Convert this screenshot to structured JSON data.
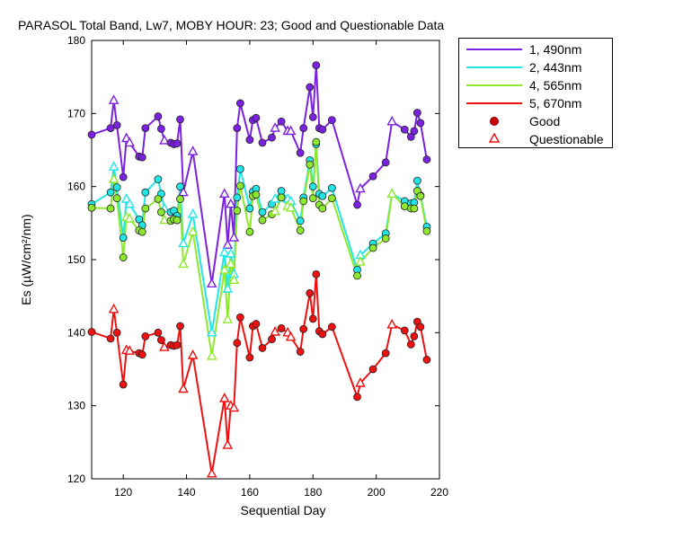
{
  "chart_data": {
    "type": "line",
    "title": "PARASOL Total Band,  Lw7, MOBY HOUR: 23;  Good and Questionable Data",
    "xlabel": "Sequential Day",
    "ylabel": "Es (µW/cm²/nm)",
    "xlim": [
      110,
      220
    ],
    "ylim": [
      120,
      180
    ],
    "xticks": [
      "120",
      "140",
      "160",
      "180",
      "200",
      "220"
    ],
    "yticks": [
      "120",
      "130",
      "140",
      "150",
      "160",
      "170",
      "180"
    ],
    "legend_position": "outside-top-right",
    "series": [
      {
        "name": "1, 490nm",
        "color": "#7b22e0",
        "points": [
          [
            110,
            167.1,
            "g"
          ],
          [
            116,
            168.0,
            "g"
          ],
          [
            117,
            171.8,
            "q"
          ],
          [
            118,
            168.4,
            "g"
          ],
          [
            120,
            161.3,
            "g"
          ],
          [
            121,
            166.6,
            "q"
          ],
          [
            122,
            166.0,
            "q"
          ],
          [
            125,
            164.1,
            "g"
          ],
          [
            126,
            164.0,
            "g"
          ],
          [
            127,
            168.0,
            "g"
          ],
          [
            131,
            169.6,
            "g"
          ],
          [
            132,
            167.9,
            "g"
          ],
          [
            133,
            166.3,
            "q"
          ],
          [
            135,
            166.0,
            "g"
          ],
          [
            136,
            165.8,
            "g"
          ],
          [
            137,
            165.9,
            "g"
          ],
          [
            138,
            169.2,
            "g"
          ],
          [
            139,
            159.2,
            "q"
          ],
          [
            142,
            164.8,
            "q"
          ],
          [
            148,
            146.7,
            "q"
          ],
          [
            152,
            159.0,
            "q"
          ],
          [
            153,
            152.0,
            "q"
          ],
          [
            154,
            157.6,
            "q"
          ],
          [
            155,
            153.0,
            "q"
          ],
          [
            156,
            168.0,
            "g"
          ],
          [
            157,
            171.4,
            "g"
          ],
          [
            160,
            166.4,
            "g"
          ],
          [
            161,
            169.1,
            "g"
          ],
          [
            162,
            169.4,
            "g"
          ],
          [
            164,
            166.0,
            "g"
          ],
          [
            167,
            166.7,
            "g"
          ],
          [
            168,
            168.0,
            "q"
          ],
          [
            170,
            168.9,
            "g"
          ],
          [
            172,
            167.6,
            "q"
          ],
          [
            173,
            167.6,
            "q"
          ],
          [
            176,
            164.6,
            "g"
          ],
          [
            177,
            168.0,
            "g"
          ],
          [
            179,
            173.6,
            "g"
          ],
          [
            180,
            169.5,
            "g"
          ],
          [
            181,
            176.6,
            "g"
          ],
          [
            182,
            168.0,
            "g"
          ],
          [
            183,
            167.8,
            "g"
          ],
          [
            186,
            169.1,
            "g"
          ],
          [
            194,
            157.5,
            "g"
          ],
          [
            195,
            159.7,
            "q"
          ],
          [
            199,
            161.4,
            "g"
          ],
          [
            203,
            163.3,
            "g"
          ],
          [
            205,
            168.9,
            "q"
          ],
          [
            209,
            167.8,
            "g"
          ],
          [
            211,
            166.8,
            "g"
          ],
          [
            212,
            167.6,
            "g"
          ],
          [
            213,
            170.1,
            "g"
          ],
          [
            214,
            168.7,
            "g"
          ],
          [
            216,
            163.7,
            "g"
          ]
        ]
      },
      {
        "name": "2, 443nm",
        "color": "#22e5e5",
        "points": [
          [
            110,
            157.6,
            "g"
          ],
          [
            116,
            159.2,
            "g"
          ],
          [
            117,
            162.7,
            "q"
          ],
          [
            118,
            159.9,
            "g"
          ],
          [
            120,
            153.0,
            "g"
          ],
          [
            121,
            158.3,
            "q"
          ],
          [
            122,
            157.6,
            "q"
          ],
          [
            125,
            155.5,
            "g"
          ],
          [
            126,
            154.7,
            "g"
          ],
          [
            127,
            159.2,
            "g"
          ],
          [
            131,
            161.0,
            "g"
          ],
          [
            132,
            159.0,
            "g"
          ],
          [
            133,
            157.0,
            "q"
          ],
          [
            135,
            156.5,
            "g"
          ],
          [
            136,
            156.7,
            "g"
          ],
          [
            137,
            156.0,
            "g"
          ],
          [
            138,
            160.0,
            "g"
          ],
          [
            139,
            152.2,
            "q"
          ],
          [
            142,
            156.2,
            "q"
          ],
          [
            148,
            140.0,
            "q"
          ],
          [
            152,
            151.0,
            "q"
          ],
          [
            153,
            146.0,
            "q"
          ],
          [
            154,
            150.8,
            "q"
          ],
          [
            155,
            148.0,
            "q"
          ],
          [
            156,
            158.5,
            "g"
          ],
          [
            157,
            162.4,
            "g"
          ],
          [
            160,
            157.0,
            "g"
          ],
          [
            161,
            159.3,
            "g"
          ],
          [
            162,
            159.7,
            "g"
          ],
          [
            164,
            156.5,
            "g"
          ],
          [
            167,
            157.6,
            "g"
          ],
          [
            168,
            158.3,
            "q"
          ],
          [
            170,
            159.4,
            "g"
          ],
          [
            172,
            158.3,
            "q"
          ],
          [
            173,
            158.0,
            "q"
          ],
          [
            176,
            155.3,
            "g"
          ],
          [
            177,
            158.5,
            "g"
          ],
          [
            179,
            163.6,
            "g"
          ],
          [
            180,
            160.0,
            "g"
          ],
          [
            181,
            165.8,
            "g"
          ],
          [
            182,
            159.0,
            "g"
          ],
          [
            183,
            158.7,
            "g"
          ],
          [
            186,
            159.8,
            "g"
          ],
          [
            194,
            148.6,
            "g"
          ],
          [
            195,
            150.6,
            "q"
          ],
          [
            199,
            152.2,
            "g"
          ],
          [
            203,
            153.6,
            "g"
          ],
          [
            205,
            159.0,
            "q"
          ],
          [
            209,
            158.0,
            "g"
          ],
          [
            211,
            157.7,
            "g"
          ],
          [
            212,
            157.8,
            "g"
          ],
          [
            213,
            160.8,
            "g"
          ],
          [
            214,
            158.8,
            "g"
          ],
          [
            216,
            154.5,
            "g"
          ]
        ]
      },
      {
        "name": "4, 565nm",
        "color": "#8fe830",
        "points": [
          [
            110,
            157.1,
            "g"
          ],
          [
            116,
            157.0,
            "g"
          ],
          [
            117,
            161.0,
            "q"
          ],
          [
            118,
            158.4,
            "g"
          ],
          [
            120,
            150.3,
            "g"
          ],
          [
            121,
            155.8,
            "q"
          ],
          [
            122,
            155.6,
            "q"
          ],
          [
            125,
            154.0,
            "g"
          ],
          [
            126,
            153.8,
            "g"
          ],
          [
            127,
            157.0,
            "g"
          ],
          [
            131,
            158.3,
            "g"
          ],
          [
            132,
            156.5,
            "g"
          ],
          [
            133,
            155.4,
            "q"
          ],
          [
            135,
            155.3,
            "g"
          ],
          [
            136,
            155.5,
            "g"
          ],
          [
            137,
            155.4,
            "g"
          ],
          [
            138,
            158.3,
            "g"
          ],
          [
            139,
            149.4,
            "q"
          ],
          [
            142,
            153.8,
            "q"
          ],
          [
            148,
            136.8,
            "q"
          ],
          [
            152,
            148.6,
            "q"
          ],
          [
            153,
            141.8,
            "q"
          ],
          [
            154,
            149.4,
            "q"
          ],
          [
            155,
            147.2,
            "q"
          ],
          [
            156,
            156.7,
            "g"
          ],
          [
            157,
            160.1,
            "g"
          ],
          [
            160,
            153.8,
            "g"
          ],
          [
            161,
            158.7,
            "g"
          ],
          [
            162,
            158.9,
            "g"
          ],
          [
            164,
            155.4,
            "g"
          ],
          [
            167,
            156.2,
            "g"
          ],
          [
            168,
            156.6,
            "q"
          ],
          [
            170,
            158.5,
            "g"
          ],
          [
            172,
            157.3,
            "q"
          ],
          [
            173,
            157.1,
            "q"
          ],
          [
            176,
            154.0,
            "g"
          ],
          [
            177,
            158.0,
            "g"
          ],
          [
            179,
            163.0,
            "g"
          ],
          [
            180,
            158.4,
            "g"
          ],
          [
            181,
            166.1,
            "g"
          ],
          [
            182,
            157.5,
            "g"
          ],
          [
            183,
            157.0,
            "g"
          ],
          [
            186,
            158.4,
            "g"
          ],
          [
            194,
            147.8,
            "g"
          ],
          [
            195,
            149.7,
            "q"
          ],
          [
            199,
            151.6,
            "g"
          ],
          [
            203,
            152.9,
            "g"
          ],
          [
            205,
            159.0,
            "q"
          ],
          [
            209,
            157.3,
            "g"
          ],
          [
            211,
            157.0,
            "g"
          ],
          [
            212,
            157.0,
            "g"
          ],
          [
            213,
            159.4,
            "g"
          ],
          [
            214,
            158.7,
            "g"
          ],
          [
            216,
            153.9,
            "g"
          ]
        ]
      },
      {
        "name": "5, 670nm",
        "color": "#ee1111",
        "points": [
          [
            110,
            140.1,
            "g"
          ],
          [
            116,
            139.2,
            "g"
          ],
          [
            117,
            143.2,
            "q"
          ],
          [
            118,
            140.0,
            "g"
          ],
          [
            120,
            132.9,
            "g"
          ],
          [
            121,
            137.6,
            "q"
          ],
          [
            122,
            137.5,
            "q"
          ],
          [
            125,
            137.2,
            "g"
          ],
          [
            126,
            137.0,
            "g"
          ],
          [
            127,
            139.5,
            "g"
          ],
          [
            131,
            140.0,
            "g"
          ],
          [
            132,
            139.0,
            "g"
          ],
          [
            133,
            138.0,
            "q"
          ],
          [
            135,
            138.3,
            "g"
          ],
          [
            136,
            138.2,
            "g"
          ],
          [
            137,
            138.3,
            "g"
          ],
          [
            138,
            140.9,
            "g"
          ],
          [
            139,
            132.3,
            "q"
          ],
          [
            142,
            136.9,
            "q"
          ],
          [
            148,
            120.7,
            "q"
          ],
          [
            152,
            131.0,
            "q"
          ],
          [
            153,
            124.6,
            "q"
          ],
          [
            154,
            130.0,
            "q"
          ],
          [
            155,
            129.7,
            "q"
          ],
          [
            156,
            138.6,
            "g"
          ],
          [
            157,
            142.1,
            "g"
          ],
          [
            160,
            136.6,
            "g"
          ],
          [
            161,
            140.9,
            "g"
          ],
          [
            162,
            141.2,
            "g"
          ],
          [
            164,
            137.9,
            "g"
          ],
          [
            167,
            139.1,
            "g"
          ],
          [
            168,
            140.1,
            "q"
          ],
          [
            170,
            140.6,
            "g"
          ],
          [
            172,
            140.0,
            "q"
          ],
          [
            173,
            139.4,
            "q"
          ],
          [
            176,
            137.4,
            "g"
          ],
          [
            177,
            140.5,
            "g"
          ],
          [
            179,
            145.4,
            "g"
          ],
          [
            180,
            141.9,
            "g"
          ],
          [
            181,
            148.0,
            "g"
          ],
          [
            182,
            140.2,
            "g"
          ],
          [
            183,
            139.8,
            "g"
          ],
          [
            186,
            140.8,
            "g"
          ],
          [
            194,
            131.2,
            "g"
          ],
          [
            195,
            133.1,
            "q"
          ],
          [
            199,
            135.0,
            "g"
          ],
          [
            203,
            137.2,
            "g"
          ],
          [
            205,
            141.1,
            "q"
          ],
          [
            209,
            140.3,
            "g"
          ],
          [
            211,
            138.4,
            "g"
          ],
          [
            212,
            139.5,
            "g"
          ],
          [
            213,
            141.5,
            "g"
          ],
          [
            214,
            140.8,
            "g"
          ],
          [
            216,
            136.3,
            "g"
          ]
        ]
      }
    ],
    "marker_legend": [
      {
        "name": "Good",
        "marker": "filled-circle",
        "color": "#cc0000"
      },
      {
        "name": "Questionable",
        "marker": "open-triangle",
        "color": "#ee1111"
      }
    ]
  }
}
